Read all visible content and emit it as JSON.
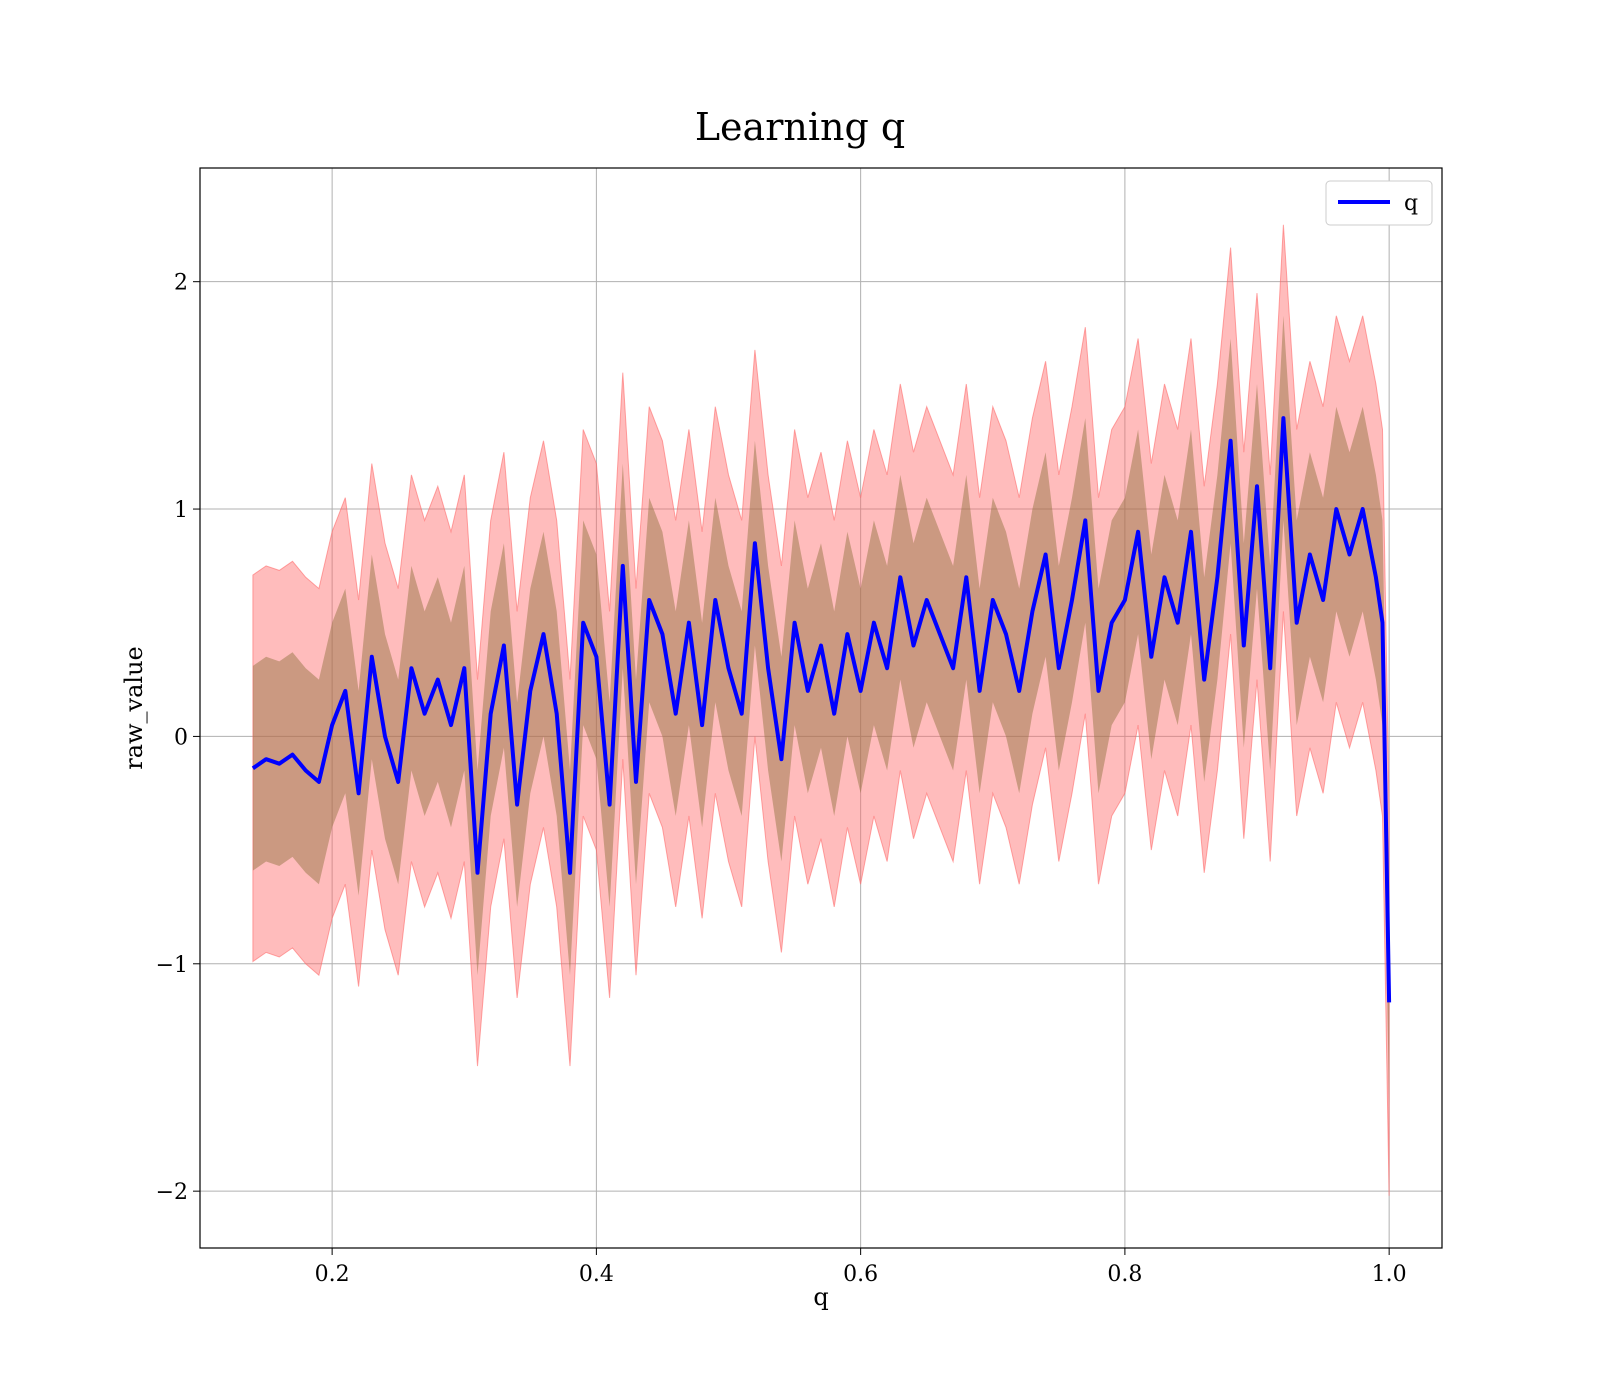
{
  "chart_data": {
    "type": "line",
    "title": "Learning q",
    "xlabel": "q",
    "ylabel": "raw_value",
    "xlim": [
      0.1,
      1.04
    ],
    "ylim": [
      -2.25,
      2.5
    ],
    "xticks": [
      0.2,
      0.4,
      0.6,
      0.8,
      1.0
    ],
    "xtick_labels": [
      "0.2",
      "0.4",
      "0.6",
      "0.8",
      "1.0"
    ],
    "yticks": [
      -2,
      -1,
      0,
      1,
      2
    ],
    "ytick_labels": [
      "−2",
      "−1",
      "0",
      "1",
      "2"
    ],
    "grid": true,
    "legend": {
      "position": "top-right",
      "entries": [
        "q"
      ]
    },
    "colors": {
      "line": "#0000ff",
      "band_outer": "#ff6b6b",
      "band_inner": "#8b6f3a",
      "grid": "#b0b0b0"
    },
    "series": [
      {
        "name": "q",
        "x": [
          0.14,
          0.15,
          0.16,
          0.17,
          0.18,
          0.19,
          0.2,
          0.21,
          0.22,
          0.23,
          0.24,
          0.25,
          0.26,
          0.27,
          0.28,
          0.29,
          0.3,
          0.31,
          0.32,
          0.33,
          0.34,
          0.35,
          0.36,
          0.37,
          0.38,
          0.39,
          0.4,
          0.41,
          0.42,
          0.43,
          0.44,
          0.45,
          0.46,
          0.47,
          0.48,
          0.49,
          0.5,
          0.51,
          0.52,
          0.53,
          0.54,
          0.55,
          0.56,
          0.57,
          0.58,
          0.59,
          0.6,
          0.61,
          0.62,
          0.63,
          0.64,
          0.65,
          0.66,
          0.67,
          0.68,
          0.69,
          0.7,
          0.71,
          0.72,
          0.73,
          0.74,
          0.75,
          0.76,
          0.77,
          0.78,
          0.79,
          0.8,
          0.81,
          0.82,
          0.83,
          0.84,
          0.85,
          0.86,
          0.87,
          0.88,
          0.89,
          0.9,
          0.91,
          0.92,
          0.93,
          0.94,
          0.95,
          0.96,
          0.97,
          0.98,
          0.99,
          0.995,
          1.0
        ],
        "y": [
          -0.14,
          -0.1,
          -0.12,
          -0.08,
          -0.15,
          -0.2,
          0.05,
          0.2,
          -0.25,
          0.35,
          0.0,
          -0.2,
          0.3,
          0.1,
          0.25,
          0.05,
          0.3,
          -0.6,
          0.1,
          0.4,
          -0.3,
          0.2,
          0.45,
          0.1,
          -0.6,
          0.5,
          0.35,
          -0.3,
          0.75,
          -0.2,
          0.6,
          0.45,
          0.1,
          0.5,
          0.05,
          0.6,
          0.3,
          0.1,
          0.85,
          0.3,
          -0.1,
          0.5,
          0.2,
          0.4,
          0.1,
          0.45,
          0.2,
          0.5,
          0.3,
          0.7,
          0.4,
          0.6,
          0.45,
          0.3,
          0.7,
          0.2,
          0.6,
          0.45,
          0.2,
          0.55,
          0.8,
          0.3,
          0.6,
          0.95,
          0.2,
          0.5,
          0.6,
          0.9,
          0.35,
          0.7,
          0.5,
          0.9,
          0.25,
          0.7,
          1.3,
          0.4,
          1.1,
          0.3,
          1.4,
          0.5,
          0.8,
          0.6,
          1.0,
          0.8,
          1.0,
          0.7,
          0.5,
          -1.17
        ],
        "band_inner": {
          "lower_offset": -0.45,
          "upper_offset": 0.45
        },
        "band_outer": {
          "lower_offset": -0.85,
          "upper_offset": 0.85
        }
      }
    ]
  }
}
